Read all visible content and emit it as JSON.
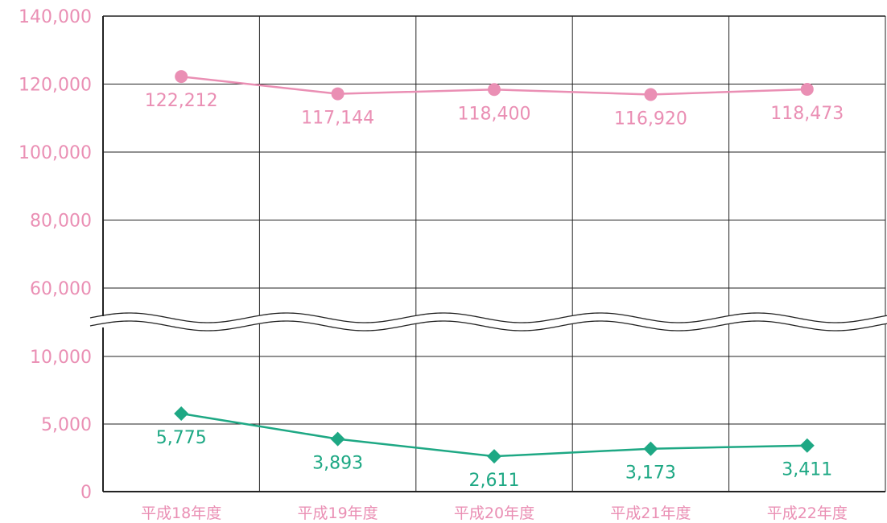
{
  "chart_data": {
    "type": "line",
    "categories": [
      "平成18年度",
      "平成19年度",
      "平成20年度",
      "平成21年度",
      "平成22年度"
    ],
    "series": [
      {
        "values": [
          122212,
          117144,
          118400,
          116920,
          118473
        ],
        "labels": [
          "122,212",
          "117,144",
          "118,400",
          "116,920",
          "118,473"
        ],
        "color": "#ea8fb4",
        "marker": "circle"
      },
      {
        "values": [
          5775,
          3893,
          2611,
          3173,
          3411
        ],
        "labels": [
          "5,775",
          "3,893",
          "2,611",
          "3,173",
          "3,411"
        ],
        "color": "#1ea884",
        "marker": "diamond"
      }
    ],
    "yticks": [
      "0",
      "5,000",
      "10,000",
      "60,000",
      "80,000",
      "100,000",
      "120,000",
      "140,000"
    ],
    "ytick_values": [
      0,
      5000,
      10000,
      60000,
      80000,
      100000,
      120000,
      140000
    ],
    "axis_break": [
      10000,
      60000
    ],
    "upper_range": [
      60000,
      140000
    ],
    "lower_range": [
      0,
      10000
    ],
    "grid": true,
    "title": "",
    "xlabel": "",
    "ylabel": "",
    "tick_color": "#ea8fb4",
    "grid_color": "#222222"
  }
}
